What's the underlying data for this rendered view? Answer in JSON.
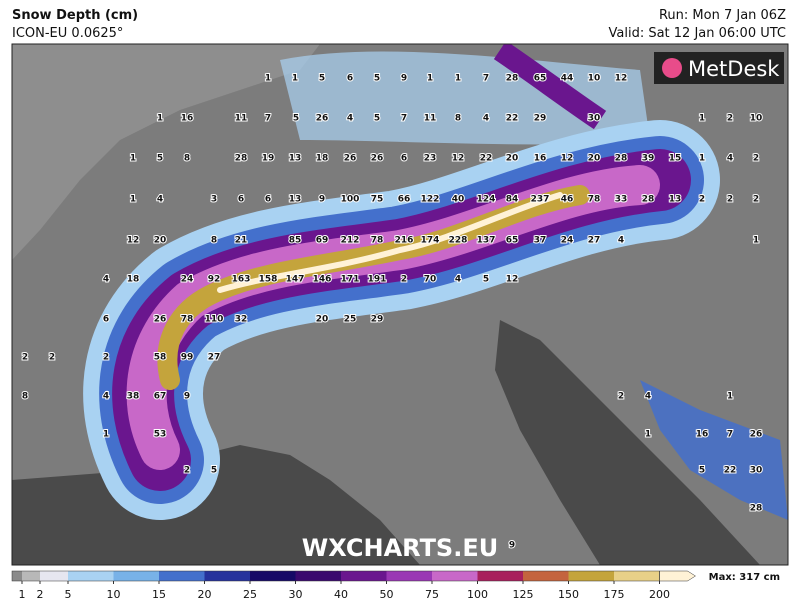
{
  "header": {
    "title": "Snow Depth (cm)",
    "subtitle": "ICON-EU 0.0625°",
    "run": "Run: Mon 7 Jan 06Z",
    "valid": "Valid: Sat 12 Jan 06:00 UTC"
  },
  "logo": "MetDesk",
  "watermark": "WXCHARTS.EU",
  "legend": {
    "ticks": [
      1,
      2,
      5,
      10,
      15,
      20,
      25,
      30,
      40,
      50,
      75,
      100,
      125,
      150,
      175,
      200
    ],
    "colors": [
      "#8a8a8a",
      "#b8b8b8",
      "#e6e6f0",
      "#a9d2f2",
      "#78b2e8",
      "#4470cc",
      "#26329c",
      "#160a66",
      "#3a0a6e",
      "#6a168e",
      "#9a38b4",
      "#c868c8",
      "#a8205c",
      "#c4643e",
      "#c4a43c",
      "#e8d088",
      "#fff2d6"
    ],
    "max": "Max: 317 cm"
  },
  "labels": [
    1,
    1,
    5,
    6,
    5,
    9,
    1,
    1,
    7,
    28,
    65,
    44,
    10,
    12,
    1,
    16,
    11,
    7,
    5,
    26,
    4,
    5,
    7,
    11,
    8,
    4,
    22,
    29,
    30,
    1,
    2,
    10,
    1,
    5,
    8,
    28,
    19,
    13,
    18,
    26,
    26,
    6,
    23,
    12,
    22,
    20,
    16,
    12,
    20,
    28,
    39,
    15,
    1,
    4,
    2,
    1,
    4,
    3,
    6,
    6,
    13,
    9,
    100,
    75,
    66,
    122,
    40,
    124,
    84,
    237,
    46,
    78,
    33,
    28,
    13,
    2,
    2,
    2,
    12,
    20,
    8,
    21,
    85,
    69,
    212,
    78,
    216,
    174,
    228,
    137,
    65,
    37,
    24,
    27,
    4,
    1,
    4,
    18,
    24,
    92,
    163,
    158,
    147,
    146,
    171,
    191,
    2,
    70,
    4,
    5,
    12,
    6,
    26,
    78,
    110,
    32,
    20,
    25,
    29,
    2,
    2,
    2,
    58,
    99,
    27,
    8,
    4,
    38,
    67,
    9,
    2,
    4,
    1,
    1,
    53,
    1,
    16,
    7,
    26,
    2,
    5,
    5,
    22,
    30,
    28,
    9
  ]
}
